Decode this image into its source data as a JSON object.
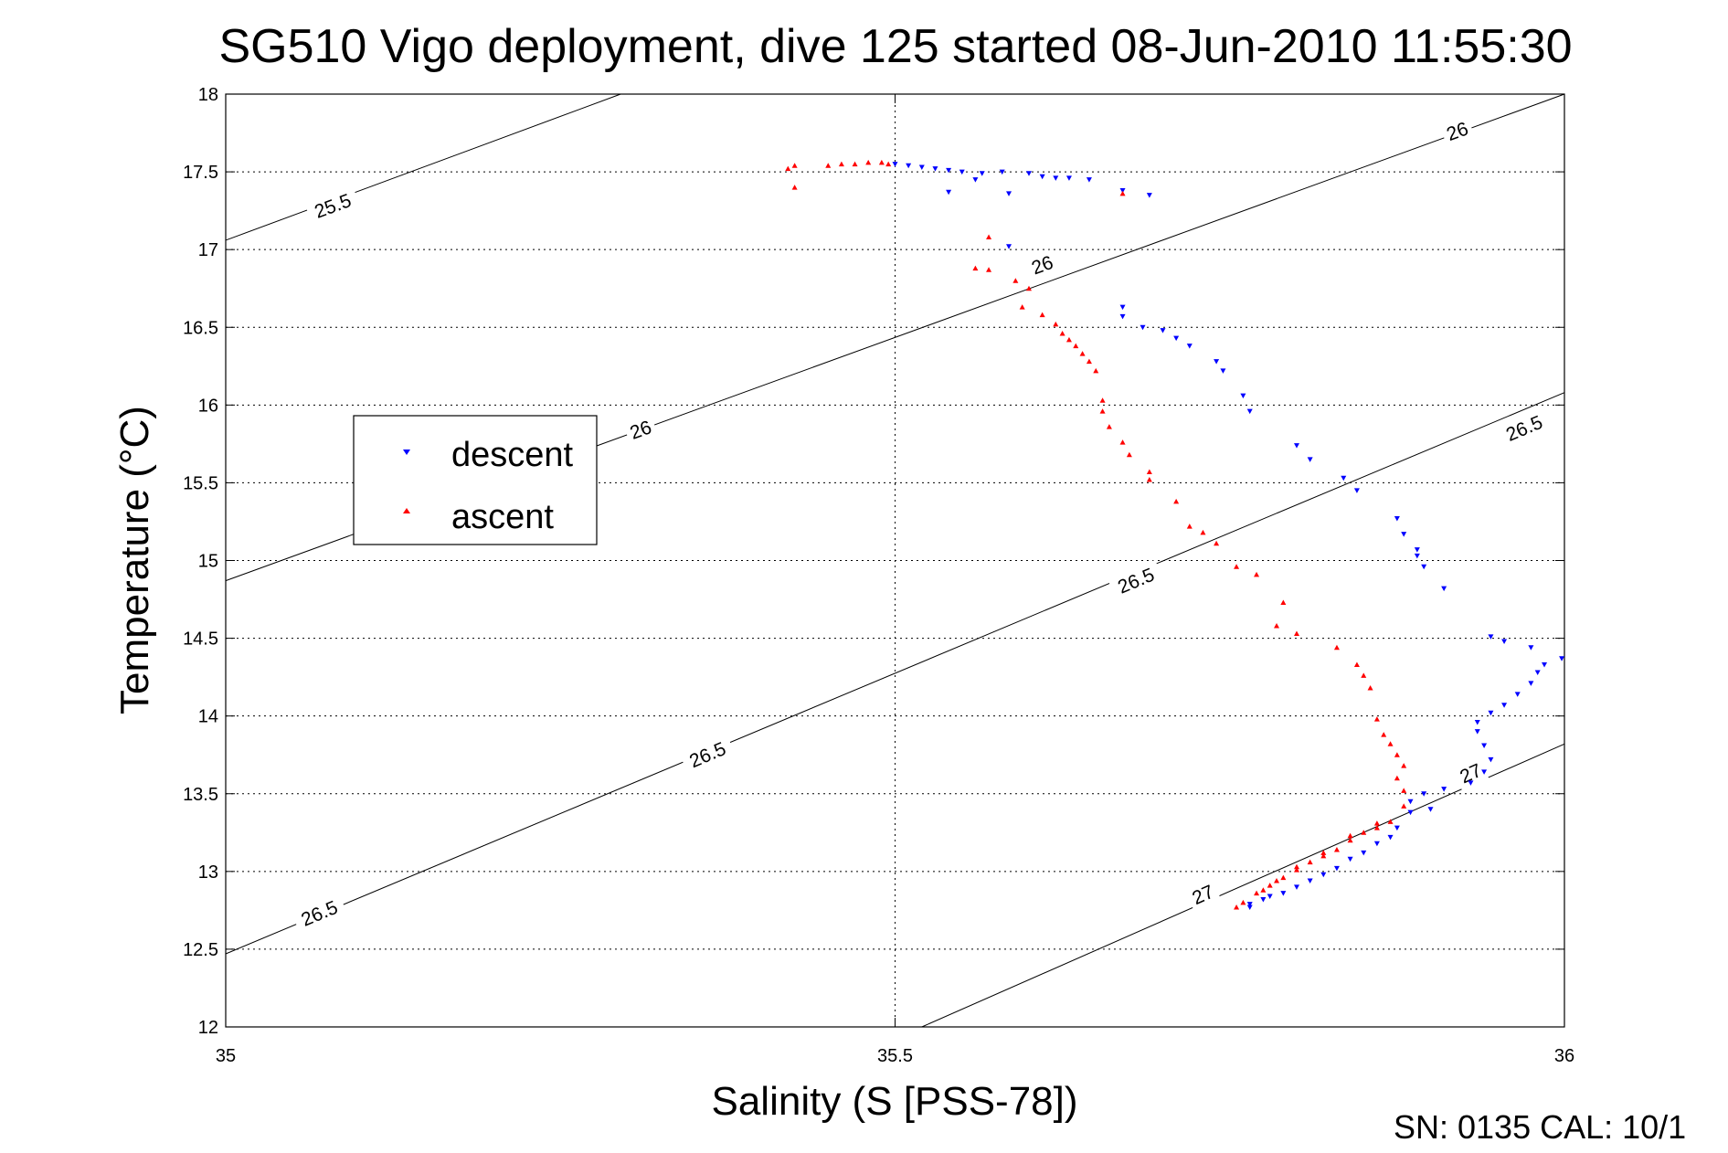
{
  "title": "SG510 Vigo deployment, dive 125 started 08-Jun-2010 11:55:30",
  "footer": "SN: 0135  CAL: 10/1",
  "colors": {
    "descent": "#0000ff",
    "ascent": "#ff0000",
    "contour": "#000000",
    "background": "#ffffff"
  },
  "chart_data": {
    "type": "scatter",
    "title": "SG510 Vigo deployment, dive 125 started 08-Jun-2010 11:55:30",
    "xlabel": "Salinity (S [PSS-78])",
    "ylabel": "Temperature (°C)",
    "xlim": [
      35,
      36
    ],
    "ylim": [
      12,
      18
    ],
    "xticks": [
      35,
      35.5,
      36
    ],
    "xtick_labels": [
      "35",
      "35.5",
      "36"
    ],
    "yticks": [
      12,
      12.5,
      13,
      13.5,
      14,
      14.5,
      15,
      15.5,
      16,
      16.5,
      17,
      17.5,
      18
    ],
    "ytick_labels": [
      "12",
      "12.5",
      "13",
      "13.5",
      "14",
      "14.5",
      "15",
      "15.5",
      "16",
      "16.5",
      "17",
      "17.5",
      "18"
    ],
    "grid": true,
    "legend": {
      "position": "left",
      "entries": [
        "descent",
        "ascent"
      ]
    },
    "contours": [
      {
        "line": [
          [
            35,
            17.06
          ],
          [
            35.295,
            18
          ]
        ],
        "labels": [
          {
            "text": "25.5",
            "at": [
              35.08,
              17.28
            ]
          }
        ]
      },
      {
        "line": [
          [
            35,
            14.87
          ],
          [
            36,
            18
          ]
        ],
        "labels": [
          {
            "text": "26",
            "at": [
              35.31,
              15.84
            ]
          },
          {
            "text": "26",
            "at": [
              35.61,
              16.9
            ]
          },
          {
            "text": "26",
            "at": [
              35.92,
              17.76
            ]
          }
        ]
      },
      {
        "line": [
          [
            35,
            12.47
          ],
          [
            36,
            16.08
          ]
        ],
        "labels": [
          {
            "text": "26.5",
            "at": [
              35.07,
              12.73
            ]
          },
          {
            "text": "26.5",
            "at": [
              35.36,
              13.75
            ]
          },
          {
            "text": "26.5",
            "at": [
              35.68,
              14.87
            ]
          },
          {
            "text": "26.5",
            "at": [
              35.97,
              15.85
            ]
          }
        ]
      },
      {
        "line": [
          [
            35.52,
            12
          ],
          [
            36,
            13.82
          ]
        ],
        "labels": [
          {
            "text": "27",
            "at": [
              35.73,
              12.85
            ]
          },
          {
            "text": "27",
            "at": [
              35.93,
              13.63
            ]
          }
        ]
      }
    ],
    "series": [
      {
        "name": "descent",
        "marker": "triangle-down",
        "points": [
          [
            35.5,
            17.55
          ],
          [
            35.51,
            17.54
          ],
          [
            35.52,
            17.53
          ],
          [
            35.53,
            17.52
          ],
          [
            35.54,
            17.51
          ],
          [
            35.55,
            17.5
          ],
          [
            35.565,
            17.49
          ],
          [
            35.56,
            17.45
          ],
          [
            35.58,
            17.5
          ],
          [
            35.6,
            17.49
          ],
          [
            35.61,
            17.47
          ],
          [
            35.62,
            17.46
          ],
          [
            35.63,
            17.46
          ],
          [
            35.645,
            17.45
          ],
          [
            35.67,
            17.38
          ],
          [
            35.69,
            17.35
          ],
          [
            35.54,
            17.37
          ],
          [
            35.585,
            17.36
          ],
          [
            35.585,
            17.02
          ],
          [
            35.67,
            16.63
          ],
          [
            35.67,
            16.57
          ],
          [
            35.685,
            16.5
          ],
          [
            35.7,
            16.48
          ],
          [
            35.71,
            16.43
          ],
          [
            35.72,
            16.38
          ],
          [
            35.74,
            16.28
          ],
          [
            35.745,
            16.22
          ],
          [
            35.76,
            16.06
          ],
          [
            35.765,
            15.96
          ],
          [
            35.8,
            15.74
          ],
          [
            35.81,
            15.65
          ],
          [
            35.835,
            15.53
          ],
          [
            35.845,
            15.45
          ],
          [
            35.875,
            15.27
          ],
          [
            35.88,
            15.17
          ],
          [
            35.89,
            15.07
          ],
          [
            35.89,
            15.03
          ],
          [
            35.895,
            14.96
          ],
          [
            35.91,
            14.82
          ],
          [
            35.945,
            14.51
          ],
          [
            35.955,
            14.48
          ],
          [
            35.975,
            14.44
          ],
          [
            35.998,
            14.37
          ],
          [
            35.985,
            14.33
          ],
          [
            35.98,
            14.28
          ],
          [
            35.975,
            14.21
          ],
          [
            35.965,
            14.14
          ],
          [
            35.955,
            14.07
          ],
          [
            35.945,
            14.02
          ],
          [
            35.935,
            13.96
          ],
          [
            35.935,
            13.9
          ],
          [
            35.94,
            13.81
          ],
          [
            35.945,
            13.72
          ],
          [
            35.94,
            13.64
          ],
          [
            35.93,
            13.57
          ],
          [
            35.91,
            13.53
          ],
          [
            35.895,
            13.5
          ],
          [
            35.885,
            13.45
          ],
          [
            35.885,
            13.38
          ],
          [
            35.875,
            13.28
          ],
          [
            35.86,
            13.18
          ],
          [
            35.84,
            13.08
          ],
          [
            35.82,
            12.98
          ],
          [
            35.8,
            12.9
          ],
          [
            35.78,
            12.84
          ],
          [
            35.765,
            12.79
          ],
          [
            35.9,
            13.4
          ],
          [
            35.87,
            13.22
          ],
          [
            35.85,
            13.12
          ],
          [
            35.83,
            13.02
          ],
          [
            35.81,
            12.94
          ],
          [
            35.79,
            12.86
          ],
          [
            35.775,
            12.82
          ],
          [
            35.765,
            12.77
          ]
        ]
      },
      {
        "name": "ascent",
        "marker": "triangle-up",
        "points": [
          [
            35.42,
            17.52
          ],
          [
            35.425,
            17.54
          ],
          [
            35.45,
            17.54
          ],
          [
            35.46,
            17.55
          ],
          [
            35.47,
            17.55
          ],
          [
            35.48,
            17.56
          ],
          [
            35.49,
            17.56
          ],
          [
            35.495,
            17.55
          ],
          [
            35.425,
            17.4
          ],
          [
            35.67,
            17.36
          ],
          [
            35.57,
            17.08
          ],
          [
            35.56,
            16.88
          ],
          [
            35.57,
            16.87
          ],
          [
            35.59,
            16.8
          ],
          [
            35.6,
            16.75
          ],
          [
            35.595,
            16.63
          ],
          [
            35.61,
            16.58
          ],
          [
            35.62,
            16.52
          ],
          [
            35.625,
            16.46
          ],
          [
            35.63,
            16.42
          ],
          [
            35.635,
            16.38
          ],
          [
            35.64,
            16.33
          ],
          [
            35.645,
            16.28
          ],
          [
            35.65,
            16.22
          ],
          [
            35.655,
            16.03
          ],
          [
            35.655,
            15.96
          ],
          [
            35.66,
            15.86
          ],
          [
            35.67,
            15.76
          ],
          [
            35.675,
            15.68
          ],
          [
            35.69,
            15.57
          ],
          [
            35.69,
            15.52
          ],
          [
            35.71,
            15.38
          ],
          [
            35.72,
            15.22
          ],
          [
            35.73,
            15.18
          ],
          [
            35.74,
            15.11
          ],
          [
            35.755,
            14.96
          ],
          [
            35.77,
            14.91
          ],
          [
            35.79,
            14.73
          ],
          [
            35.785,
            14.58
          ],
          [
            35.8,
            14.53
          ],
          [
            35.83,
            14.44
          ],
          [
            35.845,
            14.33
          ],
          [
            35.85,
            14.26
          ],
          [
            35.855,
            14.18
          ],
          [
            35.86,
            13.98
          ],
          [
            35.865,
            13.88
          ],
          [
            35.87,
            13.82
          ],
          [
            35.875,
            13.75
          ],
          [
            35.88,
            13.68
          ],
          [
            35.875,
            13.6
          ],
          [
            35.88,
            13.52
          ],
          [
            35.88,
            13.42
          ],
          [
            35.87,
            13.32
          ],
          [
            35.86,
            13.28
          ],
          [
            35.85,
            13.25
          ],
          [
            35.84,
            13.2
          ],
          [
            35.83,
            13.14
          ],
          [
            35.82,
            13.1
          ],
          [
            35.81,
            13.06
          ],
          [
            35.8,
            13.01
          ],
          [
            35.79,
            12.96
          ],
          [
            35.78,
            12.91
          ],
          [
            35.77,
            12.86
          ],
          [
            35.76,
            12.8
          ],
          [
            35.755,
            12.77
          ],
          [
            35.86,
            13.31
          ],
          [
            35.84,
            13.23
          ],
          [
            35.82,
            13.12
          ],
          [
            35.8,
            13.03
          ],
          [
            35.785,
            12.94
          ],
          [
            35.775,
            12.88
          ]
        ]
      }
    ]
  }
}
